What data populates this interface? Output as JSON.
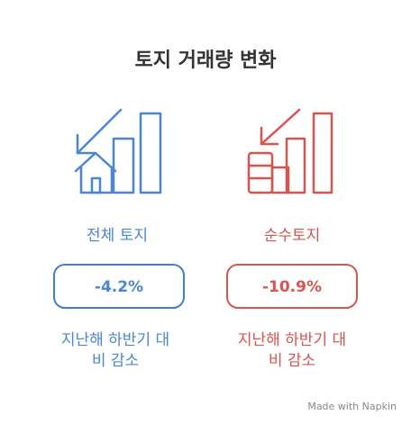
{
  "title": "토지 거래량 변화",
  "panels": [
    {
      "label": "전체 토지",
      "value": "-4.2%",
      "caption": [
        "지난해 하반기 대",
        "비 감소"
      ]
    },
    {
      "label": "순수토지",
      "value": "-10.9%",
      "caption": [
        "지난해 하반기 대",
        "비 감소"
      ]
    }
  ],
  "footer": "Made with Napkin"
}
